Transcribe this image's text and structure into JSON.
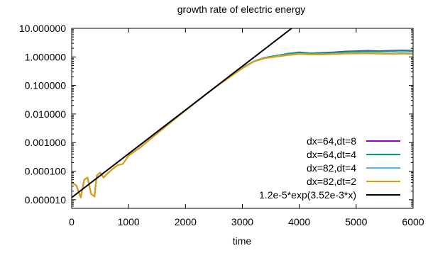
{
  "chart_data": {
    "type": "line",
    "title": "growth rate of electric energy",
    "xlabel": "time",
    "ylabel": "",
    "xlim": [
      0,
      6000
    ],
    "ylim": [
      5e-06,
      10
    ],
    "yscale": "log",
    "grid": false,
    "legend_position": "bottom-right",
    "x_ticks": [
      0,
      1000,
      2000,
      3000,
      4000,
      5000,
      6000
    ],
    "x_tick_labels": [
      "0",
      "1000",
      "2000",
      "3000",
      "4000",
      "5000",
      "6000"
    ],
    "y_ticks": [
      1e-05,
      0.0001,
      0.001,
      0.01,
      0.1,
      1,
      10
    ],
    "y_tick_labels": [
      "0.000010",
      "0.000100",
      "0.001000",
      "0.010000",
      "0.100000",
      "1.000000",
      "10.000000"
    ],
    "series": [
      {
        "name": "dx=64,dt=8",
        "color": "#9400d3",
        "x": [
          0,
          80,
          160,
          220,
          280,
          340,
          400,
          440,
          500,
          560,
          620,
          700,
          800,
          900,
          1000,
          1200,
          1500,
          2000,
          2500,
          3000,
          3200,
          3400,
          3600,
          3800,
          4000,
          4200,
          4400,
          4600,
          4800,
          5000,
          5200,
          5400,
          5600,
          5800,
          6000
        ],
        "y": [
          4e-05,
          3.2e-05,
          1.2e-05,
          5e-05,
          6e-05,
          1.6e-05,
          1.3e-05,
          7e-05,
          9e-05,
          6e-05,
          8e-05,
          0.00011,
          0.00016,
          0.00018,
          0.00035,
          0.00067,
          0.0021,
          0.0135,
          0.08,
          0.42,
          0.7,
          0.95,
          1.1,
          1.3,
          1.45,
          1.35,
          1.4,
          1.45,
          1.55,
          1.6,
          1.65,
          1.6,
          1.65,
          1.7,
          1.65
        ]
      },
      {
        "name": "dx=64,dt=4",
        "color": "#009e73",
        "x": [
          0,
          80,
          160,
          220,
          280,
          340,
          400,
          440,
          500,
          560,
          620,
          700,
          800,
          900,
          1000,
          1200,
          1500,
          2000,
          2500,
          3000,
          3200,
          3400,
          3600,
          3800,
          4000,
          4200,
          4400,
          4600,
          4800,
          5000,
          5200,
          5400,
          5600,
          5800,
          6000
        ],
        "y": [
          4e-05,
          3.2e-05,
          1.2e-05,
          5e-05,
          6e-05,
          1.6e-05,
          1.3e-05,
          7e-05,
          9e-05,
          6e-05,
          8e-05,
          0.00011,
          0.00016,
          0.00018,
          0.00035,
          0.00067,
          0.0021,
          0.0135,
          0.08,
          0.42,
          0.7,
          0.95,
          1.1,
          1.3,
          1.42,
          1.35,
          1.38,
          1.42,
          1.5,
          1.55,
          1.6,
          1.55,
          1.6,
          1.65,
          1.6
        ]
      },
      {
        "name": "dx=82,dt=4",
        "color": "#56b4e9",
        "x": [
          0,
          80,
          160,
          220,
          280,
          340,
          400,
          440,
          500,
          560,
          620,
          700,
          800,
          900,
          1000,
          1200,
          1500,
          2000,
          2500,
          3000,
          3200,
          3400,
          3600,
          3800,
          4000,
          4200,
          4400,
          4600,
          4800,
          5000,
          5200,
          5400,
          5600,
          5800,
          6000
        ],
        "y": [
          4e-05,
          3.2e-05,
          1.2e-05,
          5e-05,
          6e-05,
          1.6e-05,
          1.3e-05,
          7e-05,
          9e-05,
          6e-05,
          8e-05,
          0.00011,
          0.00016,
          0.00018,
          0.00035,
          0.00067,
          0.0021,
          0.0135,
          0.08,
          0.42,
          0.7,
          0.92,
          1.05,
          1.2,
          1.3,
          1.25,
          1.25,
          1.3,
          1.35,
          1.4,
          1.4,
          1.35,
          1.35,
          1.4,
          1.35
        ]
      },
      {
        "name": "dx=82,dt=2",
        "color": "#e69f00",
        "x": [
          0,
          80,
          160,
          220,
          280,
          340,
          400,
          440,
          500,
          560,
          620,
          700,
          800,
          900,
          1000,
          1200,
          1500,
          2000,
          2500,
          3000,
          3200,
          3400,
          3600,
          3800,
          4000,
          4200,
          4400,
          4600,
          4800,
          5000,
          5200,
          5400,
          5600,
          5800,
          6000
        ],
        "y": [
          4e-05,
          3.2e-05,
          1.2e-05,
          5e-05,
          6e-05,
          1.6e-05,
          1.3e-05,
          7e-05,
          9e-05,
          6e-05,
          8e-05,
          0.00011,
          0.00016,
          0.00018,
          0.00035,
          0.00067,
          0.0021,
          0.0135,
          0.08,
          0.4,
          0.68,
          0.9,
          1.02,
          1.15,
          1.25,
          1.2,
          1.2,
          1.25,
          1.3,
          1.32,
          1.32,
          1.3,
          1.28,
          1.3,
          1.25
        ]
      },
      {
        "name": "1.2e-5*exp(3.52e-3*x)",
        "color": "#000000",
        "x": [
          0,
          3880
        ],
        "y": [
          1.2e-05,
          10.5
        ]
      }
    ]
  }
}
